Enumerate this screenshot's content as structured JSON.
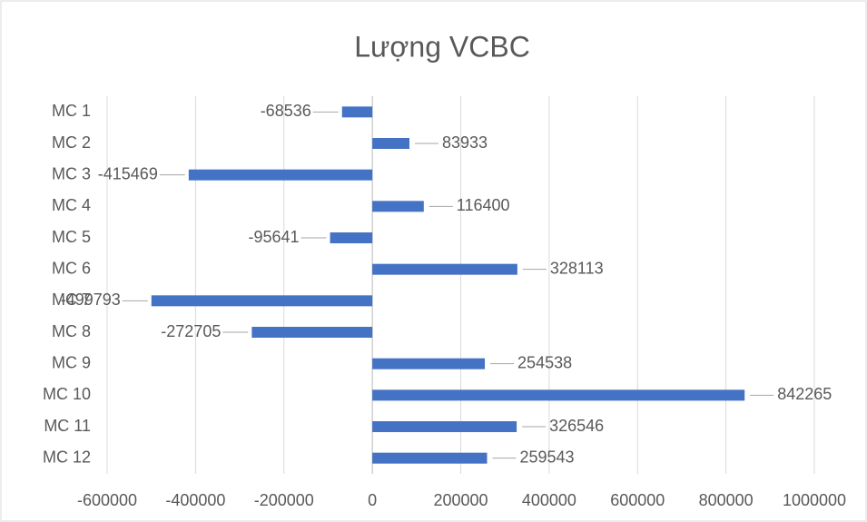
{
  "chart_data": {
    "type": "bar",
    "orientation": "horizontal",
    "title": "Lượng VCBC",
    "categories": [
      "MC 1",
      "MC 2",
      "MC 3",
      "MC 4",
      "MC 5",
      "MC 6",
      "MC 7",
      "MC 8",
      "MC 9",
      "MC 10",
      "MC 11",
      "MC 12"
    ],
    "values": [
      -68536,
      83933,
      -415469,
      116400,
      -95641,
      328113,
      -499793,
      -272705,
      254538,
      842265,
      326546,
      259543
    ],
    "color": "#4472c4",
    "xlim": [
      -600000,
      1000000
    ],
    "xticks": [
      -600000,
      -400000,
      -200000,
      0,
      200000,
      400000,
      600000,
      800000,
      1000000
    ],
    "grid": true
  }
}
